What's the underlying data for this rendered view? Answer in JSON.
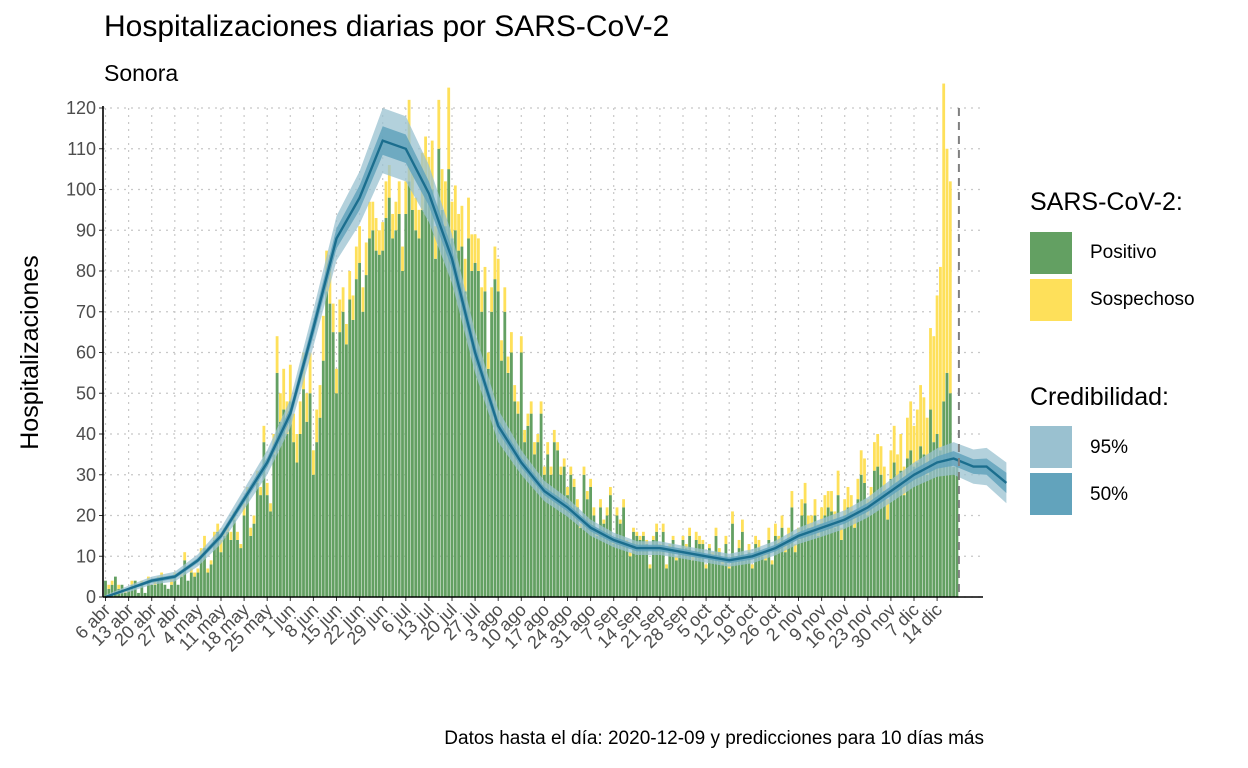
{
  "header": {
    "title": "Hospitalizaciones diarias por SARS-CoV-2",
    "subtitle": "Sonora"
  },
  "caption": "Datos hasta el día: 2020-12-09 y predicciones para 10 días más",
  "legend": {
    "fill_title": "SARS-CoV-2:",
    "fill_items": [
      {
        "label": "Positivo",
        "color": "#63a062"
      },
      {
        "label": "Sospechoso",
        "color": "#fee05a"
      }
    ],
    "cred_title": "Credibilidad:",
    "cred_items": [
      {
        "label": "95%",
        "color": "#9ac1d0"
      },
      {
        "label": "50%",
        "color": "#62a3bc"
      }
    ]
  },
  "chart_data": {
    "type": "bar",
    "stacked": true,
    "ylabel": "Hospitalizaciones",
    "ylim": [
      0,
      120
    ],
    "yticks": [
      0,
      10,
      20,
      30,
      40,
      50,
      60,
      70,
      80,
      90,
      100,
      110,
      120
    ],
    "x_start": "2020-04-06",
    "xticks": [
      "6 abr",
      "13 abr",
      "20 abr",
      "27 abr",
      "4 may",
      "11 may",
      "18 may",
      "25 may",
      "1 jun",
      "8 jun",
      "15 jun",
      "22 jun",
      "29 jun",
      "6 jul",
      "13 jul",
      "20 jul",
      "27 jul",
      "3 ago",
      "10 ago",
      "17 ago",
      "24 ago",
      "31 ago",
      "7 sep",
      "14 sep",
      "21 sep",
      "28 sep",
      "5 oct",
      "12 oct",
      "19 oct",
      "26 oct",
      "2 nov",
      "9 nov",
      "16 nov",
      "23 nov",
      "30 nov",
      "7 dic",
      "14 dic"
    ],
    "data_until": "2020-12-09",
    "grid": true,
    "legend_position": "right",
    "colors": {
      "positivo": "#63a062",
      "sospechoso": "#fee05a",
      "ci95": "#9ac1d0",
      "ci50": "#62a3bc",
      "line": "#1b6e8e",
      "cutoff_line": "#808080"
    },
    "series": [
      {
        "name": "Positivo",
        "values": [
          4,
          2,
          3,
          5,
          2,
          3,
          1,
          2,
          3,
          4,
          1,
          3,
          1,
          4,
          3,
          3,
          4,
          5,
          3,
          2,
          3,
          5,
          3,
          5,
          9,
          4,
          6,
          5,
          6,
          10,
          12,
          6,
          8,
          14,
          16,
          11,
          15,
          16,
          14,
          19,
          14,
          12,
          20,
          25,
          15,
          18,
          28,
          25,
          38,
          25,
          21,
          35,
          55,
          43,
          46,
          40,
          48,
          38,
          33,
          40,
          51,
          43,
          50,
          30,
          38,
          44,
          58,
          75,
          72,
          65,
          50,
          65,
          70,
          62,
          73,
          68,
          78,
          82,
          70,
          79,
          88,
          90,
          85,
          84,
          85,
          93,
          98,
          88,
          90,
          94,
          80,
          94,
          102,
          95,
          90,
          88,
          95,
          102,
          98,
          100,
          83,
          110,
          95,
          91,
          105,
          88,
          90,
          85,
          86,
          75,
          88,
          80,
          82,
          80,
          70,
          75,
          56,
          70,
          78,
          75,
          58,
          70,
          55,
          60,
          48,
          45,
          60,
          38,
          42,
          45,
          35,
          38,
          45,
          30,
          35,
          30,
          38,
          36,
          30,
          32,
          25,
          30,
          27,
          22,
          17,
          30,
          24,
          27,
          20,
          15,
          22,
          18,
          20,
          25,
          13,
          20,
          18,
          22,
          13,
          10,
          16,
          15,
          14,
          15,
          13,
          7,
          14,
          16,
          12,
          16,
          7,
          12,
          14,
          9,
          11,
          14,
          12,
          15,
          9,
          14,
          13,
          13,
          7,
          12,
          10,
          15,
          11,
          8,
          13,
          7,
          18,
          9,
          12,
          16,
          9,
          11,
          7,
          13,
          12,
          10,
          9,
          14,
          8,
          15,
          13,
          17,
          11,
          14,
          22,
          11,
          14,
          20,
          23,
          17,
          17,
          20,
          15,
          18,
          20,
          22,
          21,
          17,
          25,
          14,
          20,
          22,
          21,
          17,
          24,
          30,
          28,
          20,
          22,
          31,
          32,
          30,
          26,
          19,
          29,
          33,
          28,
          31,
          25,
          34,
          36,
          32,
          33,
          37,
          35,
          30,
          46,
          38,
          40,
          36,
          48,
          55,
          50,
          32,
          32
        ],
        "data_note": "daily confirmed, 2020-04-06 to 2020-12-09"
      },
      {
        "name": "Sospechoso",
        "values": [
          0,
          1,
          1,
          0,
          1,
          0,
          1,
          0,
          1,
          0,
          0,
          1,
          0,
          1,
          0,
          1,
          1,
          1,
          0,
          0,
          2,
          1,
          0,
          1,
          2,
          0,
          1,
          1,
          1,
          2,
          3,
          1,
          1,
          2,
          2,
          3,
          2,
          2,
          2,
          2,
          2,
          1,
          3,
          2,
          2,
          2,
          3,
          2,
          4,
          3,
          2,
          5,
          9,
          7,
          10,
          8,
          9,
          7,
          7,
          8,
          9,
          7,
          10,
          6,
          8,
          8,
          11,
          10,
          12,
          7,
          6,
          8,
          6,
          5,
          7,
          6,
          8,
          9,
          6,
          8,
          9,
          7,
          8,
          6,
          7,
          9,
          8,
          6,
          7,
          8,
          6,
          8,
          20,
          9,
          8,
          7,
          14,
          11,
          10,
          12,
          8,
          12,
          10,
          11,
          20,
          9,
          11,
          9,
          10,
          8,
          10,
          9,
          7,
          8,
          6,
          6,
          4,
          6,
          8,
          8,
          5,
          6,
          4,
          5,
          4,
          3,
          4,
          3,
          3,
          3,
          3,
          2,
          3,
          2,
          3,
          2,
          3,
          2,
          2,
          2,
          2,
          2,
          2,
          2,
          1,
          2,
          2,
          2,
          2,
          1,
          2,
          1,
          2,
          2,
          1,
          2,
          1,
          2,
          1,
          1,
          1,
          1,
          1,
          1,
          1,
          1,
          1,
          2,
          1,
          2,
          1,
          1,
          1,
          1,
          1,
          1,
          1,
          2,
          1,
          2,
          2,
          1,
          1,
          1,
          1,
          2,
          1,
          1,
          2,
          1,
          3,
          1,
          2,
          3,
          1,
          2,
          1,
          2,
          2,
          1,
          2,
          3,
          1,
          3,
          2,
          3,
          2,
          3,
          4,
          2,
          3,
          4,
          5,
          3,
          3,
          4,
          3,
          4,
          5,
          4,
          5,
          4,
          6,
          3,
          4,
          5,
          4,
          4,
          5,
          6,
          6,
          4,
          5,
          7,
          8,
          7,
          6,
          5,
          7,
          9,
          7,
          9,
          7,
          10,
          12,
          10,
          13,
          15,
          14,
          14,
          20,
          26,
          34,
          45,
          78,
          55,
          52
        ]
      }
    ],
    "trend": {
      "name": "Predicción",
      "days": [
        0,
        7,
        14,
        21,
        28,
        35,
        42,
        49,
        56,
        63,
        70,
        77,
        84,
        91,
        98,
        105,
        112,
        119,
        126,
        133,
        140,
        147,
        154,
        161,
        168,
        175,
        182,
        189,
        196,
        203,
        210,
        217,
        224,
        231,
        238,
        245,
        252,
        257,
        263,
        267,
        273
      ],
      "mean": [
        0,
        2,
        4,
        5,
        9,
        15,
        24,
        33,
        45,
        66,
        88,
        98,
        112,
        110,
        99,
        83,
        60,
        42,
        33,
        26,
        22,
        17,
        14,
        12,
        12,
        11,
        10,
        9,
        10,
        12,
        15,
        17,
        19,
        22,
        26,
        30,
        33,
        34,
        32,
        32,
        28
      ],
      "ci50_width": [
        0.2,
        0.3,
        0.5,
        0.5,
        0.6,
        0.8,
        1,
        1.2,
        1.5,
        2,
        2.5,
        3,
        3.5,
        3.5,
        3,
        2.5,
        2,
        1.5,
        1.2,
        1,
        1,
        0.9,
        0.8,
        0.8,
        0.8,
        0.8,
        0.7,
        0.7,
        0.8,
        0.8,
        0.9,
        1,
        1,
        1.1,
        1.2,
        1.3,
        1.5,
        1.8,
        1.8,
        2,
        2.5
      ],
      "ci95_width": [
        0.5,
        0.8,
        1,
        1.2,
        1.5,
        2,
        2.5,
        3,
        3.5,
        4.5,
        5.5,
        6.5,
        8,
        8,
        7,
        6,
        5,
        4,
        3,
        2.5,
        2.3,
        2,
        1.8,
        1.7,
        1.7,
        1.6,
        1.6,
        1.6,
        1.7,
        1.8,
        2,
        2.2,
        2.3,
        2.5,
        2.8,
        3,
        3.5,
        4,
        4.2,
        4.6,
        5
      ]
    }
  }
}
